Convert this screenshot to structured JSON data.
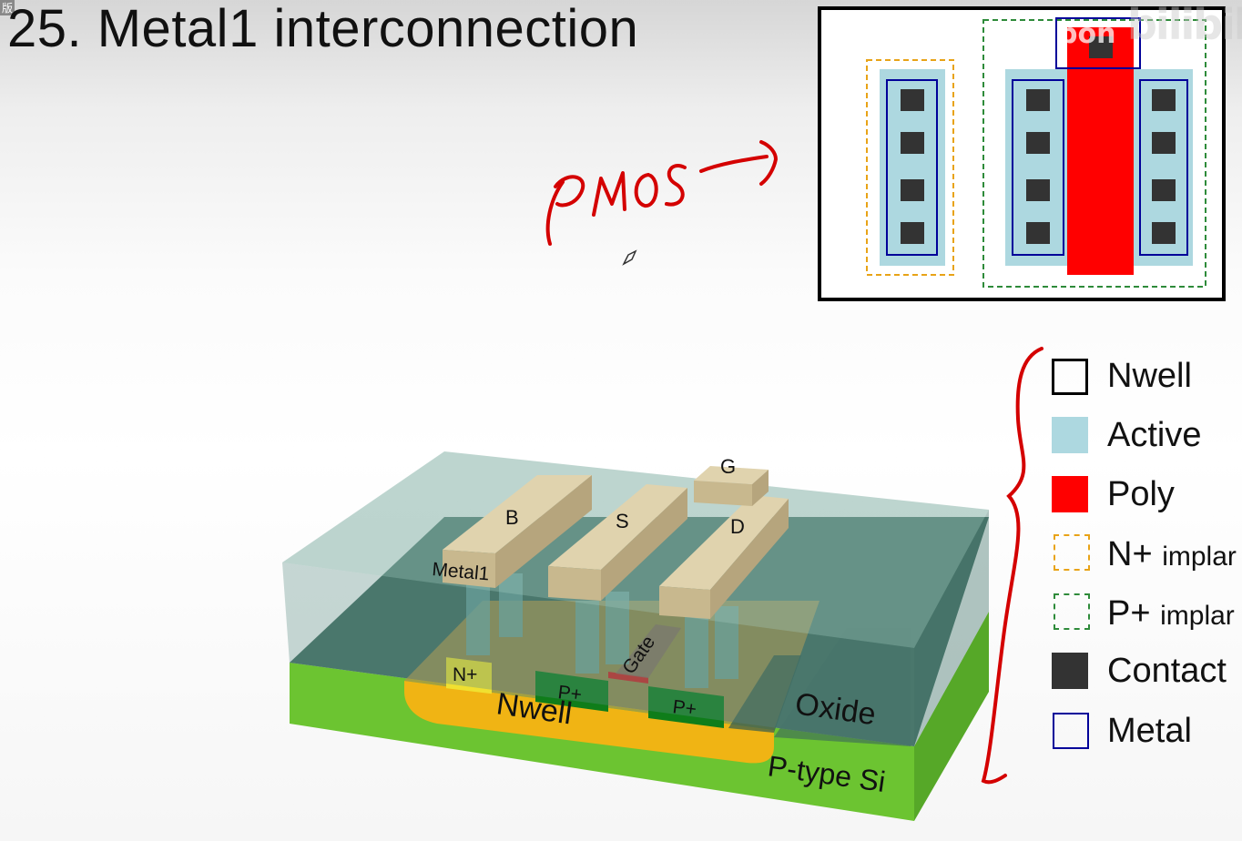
{
  "slide": {
    "title": "25. Metal1 interconnection",
    "corner_mark": "版"
  },
  "annotation": {
    "handwritten_text": "PMOS",
    "ink_color": "#d40000"
  },
  "watermark": {
    "text1": "pon",
    "text2": "bilibili"
  },
  "diagram3d": {
    "labels": {
      "bulk": "B",
      "source": "S",
      "drain": "D",
      "gate_pad": "G",
      "metal1": "Metal1",
      "n_plus": "N+",
      "p_plus_left": "P+",
      "p_plus_right": "P+",
      "gate": "Gate",
      "nwell": "Nwell",
      "oxide": "Oxide",
      "substrate": "P-type Si"
    },
    "colors": {
      "oxide": "#5f8f86",
      "substrate": "#6cc431",
      "nwell": "#f0b414",
      "metal": "#cfc19c",
      "p_plus": "#0f7d1a",
      "n_plus": "#f0e030",
      "gate": "#d42020"
    }
  },
  "legend": {
    "items": [
      {
        "label": "Nwell",
        "suffix": "",
        "swatch": "nwell-outline"
      },
      {
        "label": "Active",
        "suffix": "",
        "swatch": "active-fill"
      },
      {
        "label": "Poly",
        "suffix": "",
        "swatch": "poly-fill"
      },
      {
        "label": "N+",
        "suffix": "implar",
        "swatch": "nplus-dashed"
      },
      {
        "label": "P+",
        "suffix": "implar",
        "swatch": "pplus-dashed"
      },
      {
        "label": "Contact",
        "suffix": "",
        "swatch": "contact-fill"
      },
      {
        "label": "Metal",
        "suffix": "",
        "swatch": "metal-outline"
      }
    ],
    "colors": {
      "nwell": "#000000",
      "active": "#add8e0",
      "poly": "#ff0000",
      "nplus": "#e8a317",
      "pplus": "#2e8b3a",
      "contact": "#333333",
      "metal": "#000099"
    }
  }
}
